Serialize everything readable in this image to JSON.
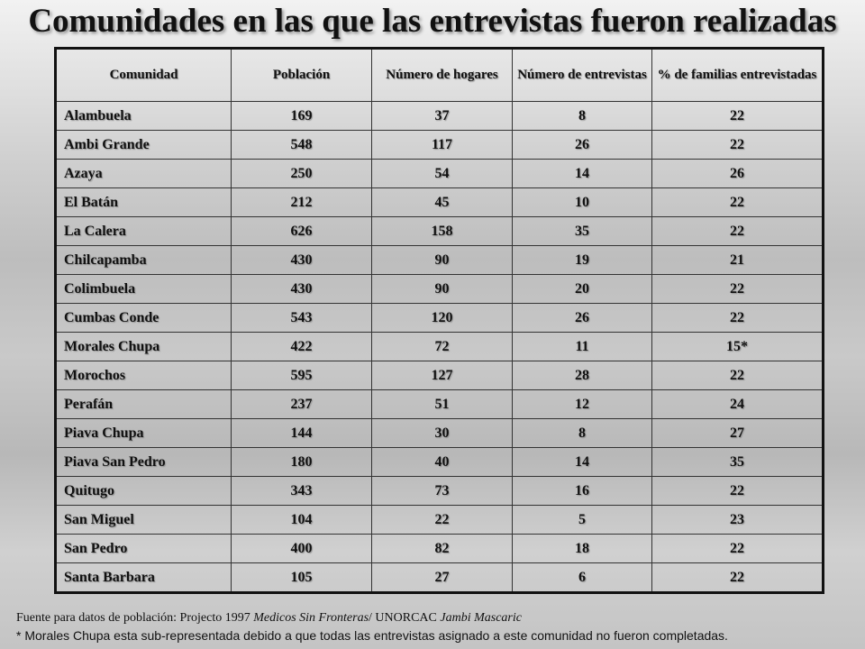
{
  "title": "Comunidades en las que las entrevistas fueron realizadas",
  "table": {
    "headers": [
      "Comunidad",
      "Población",
      "Número de hogares",
      "Número de entrevistas",
      "% de familias entrevistadas"
    ],
    "rows": [
      [
        "Alambuela",
        "169",
        "37",
        "8",
        "22"
      ],
      [
        "Ambi Grande",
        "548",
        "117",
        "26",
        "22"
      ],
      [
        "Azaya",
        "250",
        "54",
        "14",
        "26"
      ],
      [
        "El Batán",
        "212",
        "45",
        "10",
        "22"
      ],
      [
        "La Calera",
        "626",
        "158",
        "35",
        "22"
      ],
      [
        "Chilcapamba",
        "430",
        "90",
        "19",
        "21"
      ],
      [
        "Colimbuela",
        "430",
        "90",
        "20",
        "22"
      ],
      [
        "Cumbas Conde",
        "543",
        "120",
        "26",
        "22"
      ],
      [
        "Morales Chupa",
        "422",
        "72",
        "11",
        "15*"
      ],
      [
        "Morochos",
        "595",
        "127",
        "28",
        "22"
      ],
      [
        "Perafán",
        "237",
        "51",
        "12",
        "24"
      ],
      [
        "Piava Chupa",
        "144",
        "30",
        "8",
        "27"
      ],
      [
        "Piava San Pedro",
        "180",
        "40",
        "14",
        "35"
      ],
      [
        "Quitugo",
        "343",
        "73",
        "16",
        "22"
      ],
      [
        "San Miguel",
        "104",
        "22",
        "5",
        "23"
      ],
      [
        "San Pedro",
        "400",
        "82",
        "18",
        "22"
      ],
      [
        "Santa Barbara",
        "105",
        "27",
        "6",
        "22"
      ]
    ]
  },
  "footer": {
    "source_prefix": "Fuente para datos de población: Projecto 1997 ",
    "source_org1": "Medicos Sin Fronteras",
    "source_sep": "/ UNORCAC ",
    "source_org2": "Jambi Mascaric",
    "note": "*  Morales Chupa esta sub-representada debido a que todas las entrevistas asignado a este comunidad no fueron completadas."
  }
}
